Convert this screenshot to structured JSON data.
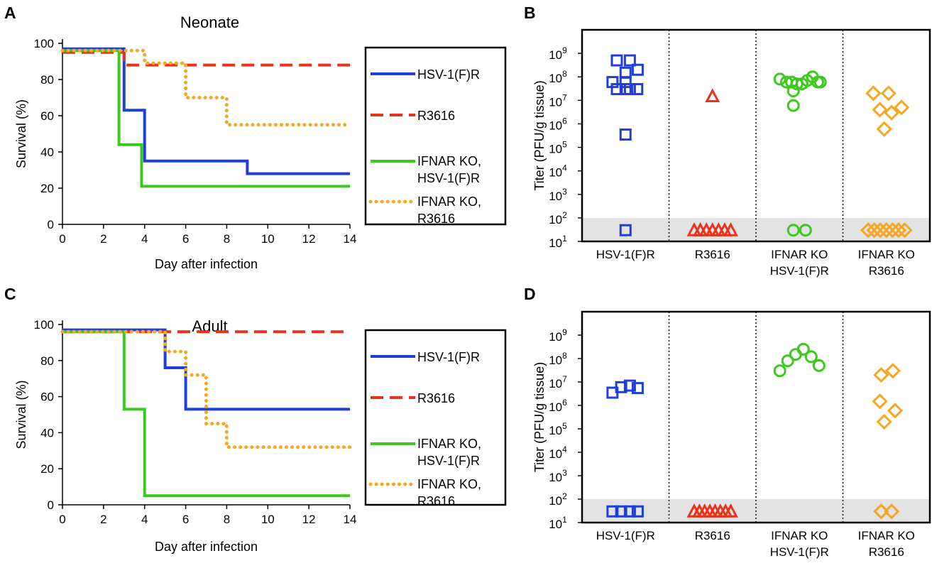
{
  "colors": {
    "hsv": "#1f3fdb",
    "r3616": "#e8331c",
    "ko_hsv": "#3cc81e",
    "ko_r3616": "#f5a623",
    "lod_band": "#e3e3e3"
  },
  "panels": {
    "A": {
      "letter": "A",
      "title": "Neonate"
    },
    "B": {
      "letter": "B"
    },
    "C": {
      "letter": "C",
      "title": "Adult"
    },
    "D": {
      "letter": "D"
    }
  },
  "legend": [
    {
      "key": "hsv",
      "line1": "HSV-1(F)R",
      "line2": "",
      "dash": "solid"
    },
    {
      "key": "r3616",
      "line1": "R3616",
      "line2": "",
      "dash": "dashed"
    },
    {
      "key": "ko_hsv",
      "line1": "IFNAR KO,",
      "line2": "HSV-1(F)R",
      "dash": "solid"
    },
    {
      "key": "ko_r3616",
      "line1": "IFNAR KO,",
      "line2": "R3616",
      "dash": "dotted"
    }
  ],
  "chart_data": [
    {
      "panel": "A",
      "type": "line",
      "title": "Neonate",
      "xlabel": "Day after infection",
      "ylabel": "Survival (%)",
      "xlim": [
        0,
        14
      ],
      "ylim": [
        0,
        100
      ],
      "xticks": [
        0,
        2,
        4,
        6,
        8,
        10,
        12,
        14
      ],
      "yticks": [
        0,
        20,
        40,
        60,
        80,
        100
      ],
      "grid": false,
      "legend_position": "right",
      "series": [
        {
          "name": "HSV-1(F)R",
          "key": "hsv",
          "dash": "solid",
          "x": [
            0,
            3,
            3,
            4,
            4,
            9,
            9,
            14
          ],
          "y": [
            97,
            97,
            63,
            63,
            35,
            35,
            28,
            28
          ]
        },
        {
          "name": "R3616",
          "key": "r3616",
          "dash": "dashed",
          "x": [
            0,
            3,
            3,
            14
          ],
          "y": [
            95,
            95,
            88,
            88
          ]
        },
        {
          "name": "IFNAR KO, HSV-1(F)R",
          "key": "ko_hsv",
          "dash": "solid",
          "x": [
            0,
            2.75,
            2.75,
            3.85,
            3.85,
            14
          ],
          "y": [
            96,
            96,
            44,
            44,
            21,
            21
          ]
        },
        {
          "name": "IFNAR KO, R3616",
          "key": "ko_r3616",
          "dash": "dotted",
          "x": [
            0,
            4,
            4,
            6,
            6,
            8,
            8,
            14
          ],
          "y": [
            96,
            96,
            89,
            89,
            70,
            70,
            55,
            55
          ]
        }
      ]
    },
    {
      "panel": "B",
      "type": "scatter",
      "ylabel": "Titer (PFU/g tissue)",
      "yscale": "log",
      "ylim": [
        10,
        10000000000
      ],
      "ytick_labels": [
        "10^1",
        "10^2",
        "10^3",
        "10^4",
        "10^5",
        "10^6",
        "10^7",
        "10^8",
        "10^9"
      ],
      "detection_limit_band": [
        10,
        100
      ],
      "grid": false,
      "groups": [
        {
          "label": "HSV-1(F)R",
          "label2": "",
          "key": "hsv",
          "marker": "square",
          "values": [
            500000000,
            500000000,
            200000000,
            150000000,
            60000000,
            60000000,
            30000000,
            30000000,
            30000000,
            30000000,
            350000,
            30
          ],
          "offsets": [
            -0.2,
            0.1,
            0.28,
            0.0,
            -0.3,
            0.0,
            -0.2,
            0.0,
            0.1,
            0.27,
            0.0,
            0.0
          ]
        },
        {
          "label": "R3616",
          "label2": "",
          "key": "r3616",
          "marker": "triangle",
          "values": [
            15000000,
            30,
            30,
            30,
            30,
            30,
            30,
            30
          ],
          "offsets": [
            0.0,
            -0.42,
            -0.28,
            -0.14,
            0.0,
            0.14,
            0.28,
            0.42
          ]
        },
        {
          "label": "IFNAR KO",
          "label2": "HSV-1(F)R",
          "key": "ko_hsv",
          "marker": "circle",
          "values": [
            80000000,
            60000000,
            60000000,
            50000000,
            50000000,
            70000000,
            100000000,
            60000000,
            60000000,
            25000000,
            6000000,
            30,
            30
          ],
          "offsets": [
            -0.45,
            -0.3,
            -0.18,
            -0.06,
            0.06,
            0.18,
            0.3,
            0.42,
            0.48,
            -0.14,
            -0.14,
            -0.14,
            0.14
          ]
        },
        {
          "label": "IFNAR KO",
          "label2": "R3616",
          "key": "ko_r3616",
          "marker": "diamond",
          "values": [
            20000000,
            20000000,
            5000000,
            4000000,
            3000000,
            600000,
            30,
            30,
            30,
            30,
            30,
            30,
            30
          ],
          "offsets": [
            -0.3,
            0.05,
            0.35,
            -0.15,
            0.12,
            -0.05,
            -0.42,
            -0.28,
            -0.14,
            0.0,
            0.14,
            0.28,
            0.42
          ]
        }
      ]
    },
    {
      "panel": "C",
      "type": "line",
      "title": "Adult",
      "xlabel": "Day after infection",
      "ylabel": "Survival (%)",
      "xlim": [
        0,
        14
      ],
      "ylim": [
        0,
        100
      ],
      "xticks": [
        0,
        2,
        4,
        6,
        8,
        10,
        12,
        14
      ],
      "yticks": [
        0,
        20,
        40,
        60,
        80,
        100
      ],
      "grid": false,
      "legend_position": "right",
      "series": [
        {
          "name": "HSV-1(F)R",
          "key": "hsv",
          "dash": "solid",
          "x": [
            0,
            5,
            5,
            6,
            6,
            14
          ],
          "y": [
            97,
            97,
            76,
            76,
            53,
            53
          ]
        },
        {
          "name": "R3616",
          "key": "r3616",
          "dash": "dashed",
          "x": [
            0,
            14
          ],
          "y": [
            96,
            96
          ]
        },
        {
          "name": "IFNAR KO, HSV-1(F)R",
          "key": "ko_hsv",
          "dash": "solid",
          "x": [
            0,
            3,
            3,
            4,
            4,
            14
          ],
          "y": [
            96,
            96,
            53,
            53,
            5,
            5
          ]
        },
        {
          "name": "IFNAR KO, R3616",
          "key": "ko_r3616",
          "dash": "dotted",
          "x": [
            0,
            5,
            5,
            6,
            6,
            7,
            7,
            8,
            8,
            14
          ],
          "y": [
            96,
            96,
            85,
            85,
            72,
            72,
            45,
            45,
            32,
            32
          ]
        }
      ]
    },
    {
      "panel": "D",
      "type": "scatter",
      "ylabel": "Titer (PFU/g tissue)",
      "yscale": "log",
      "ylim": [
        10,
        10000000000
      ],
      "ytick_labels": [
        "10^1",
        "10^2",
        "10^3",
        "10^4",
        "10^5",
        "10^6",
        "10^7",
        "10^8",
        "10^9"
      ],
      "detection_limit_band": [
        10,
        100
      ],
      "grid": false,
      "groups": [
        {
          "label": "HSV-1(F)R",
          "label2": "",
          "key": "hsv",
          "marker": "square",
          "values": [
            3500000,
            6000000,
            7000000,
            5500000,
            30,
            30,
            30,
            30
          ],
          "offsets": [
            -0.3,
            -0.1,
            0.1,
            0.28,
            -0.3,
            -0.1,
            0.1,
            0.28
          ]
        },
        {
          "label": "R3616",
          "label2": "",
          "key": "r3616",
          "marker": "triangle",
          "values": [
            30,
            30,
            30,
            30,
            30,
            30,
            30,
            30
          ],
          "offsets": [
            -0.42,
            -0.3,
            -0.18,
            -0.06,
            0.06,
            0.18,
            0.3,
            0.42
          ]
        },
        {
          "label": "IFNAR KO",
          "label2": "HSV-1(F)R",
          "key": "ko_hsv",
          "marker": "circle",
          "values": [
            30000000,
            80000000,
            150000000,
            250000000,
            120000000,
            50000000
          ],
          "offsets": [
            -0.45,
            -0.27,
            -0.09,
            0.09,
            0.27,
            0.45
          ]
        },
        {
          "label": "IFNAR KO",
          "label2": "R3616",
          "key": "ko_r3616",
          "marker": "diamond",
          "values": [
            20000000,
            30000000,
            1500000,
            600000,
            200000,
            30,
            30
          ],
          "offsets": [
            -0.12,
            0.15,
            -0.15,
            0.2,
            -0.05,
            -0.12,
            0.12
          ]
        }
      ]
    }
  ]
}
